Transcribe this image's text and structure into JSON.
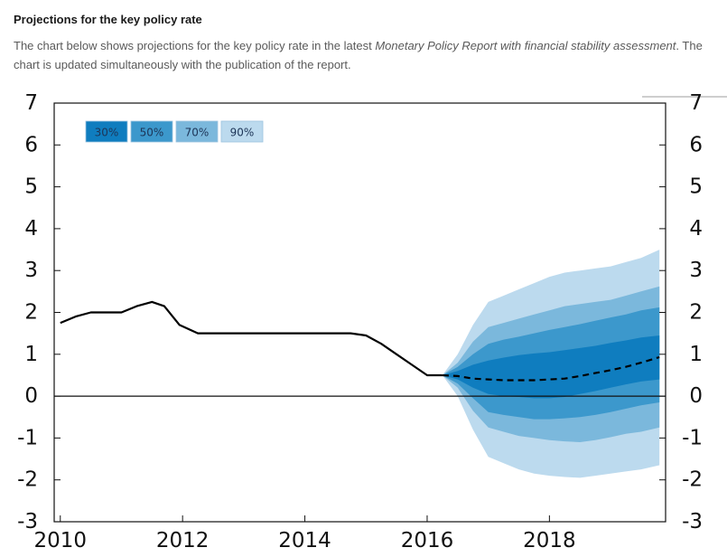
{
  "header": {
    "title": "Projections for the key policy rate",
    "desc_before": "The chart below shows projections for the key policy rate in the latest ",
    "desc_em": "Monetary Policy Report with financial stability assessment",
    "desc_after": ". The chart is updated simultaneously with the publication of the report."
  },
  "chart_data": {
    "type": "line",
    "ylim": [
      -3,
      7
    ],
    "y_ticks": [
      -3,
      -2,
      -1,
      0,
      1,
      2,
      3,
      4,
      5,
      6,
      7
    ],
    "y_tick_labels": [
      "-3",
      "-2",
      "-1",
      "0",
      "1",
      "2",
      "3",
      "4",
      "5",
      "6",
      "7"
    ],
    "xlim": [
      2009.9,
      2019.9
    ],
    "x_ticks": [
      2010,
      2012,
      2014,
      2016,
      2018
    ],
    "x_tick_labels": [
      "2010",
      "2012",
      "2014",
      "2016",
      "2018"
    ],
    "grid": false,
    "legend_placement": "top-left",
    "legend": [
      {
        "label": "30%",
        "color": "#0f7dbf"
      },
      {
        "label": "50%",
        "color": "#3c98cc"
      },
      {
        "label": "70%",
        "color": "#7bb8dc"
      },
      {
        "label": "90%",
        "color": "#bcdaee"
      }
    ],
    "historical": {
      "x": [
        2010.0,
        2010.25,
        2010.5,
        2010.75,
        2011.0,
        2011.25,
        2011.5,
        2011.7,
        2011.95,
        2012.25,
        2012.5,
        2012.75,
        2013.0,
        2013.25,
        2013.5,
        2013.75,
        2014.0,
        2014.25,
        2014.5,
        2014.75,
        2015.0,
        2015.25,
        2015.5,
        2015.75,
        2016.0,
        2016.25
      ],
      "y": [
        1.75,
        1.9,
        2.0,
        2.0,
        2.0,
        2.15,
        2.25,
        2.15,
        1.7,
        1.5,
        1.5,
        1.5,
        1.5,
        1.5,
        1.5,
        1.5,
        1.5,
        1.5,
        1.5,
        1.5,
        1.45,
        1.25,
        1.0,
        0.75,
        0.5,
        0.5
      ]
    },
    "projection": {
      "x": [
        2016.25,
        2016.5,
        2016.75,
        2017.0,
        2017.25,
        2017.5,
        2017.75,
        2018.0,
        2018.25,
        2018.5,
        2018.75,
        2019.0,
        2019.25,
        2019.5,
        2019.8
      ],
      "y": [
        0.5,
        0.48,
        0.42,
        0.4,
        0.38,
        0.38,
        0.38,
        0.4,
        0.42,
        0.48,
        0.55,
        0.62,
        0.7,
        0.8,
        0.93
      ]
    },
    "fan_x": [
      2016.25,
      2016.5,
      2016.75,
      2017.0,
      2017.25,
      2017.5,
      2017.75,
      2018.0,
      2018.25,
      2018.5,
      2018.75,
      2019.0,
      2019.25,
      2019.5,
      2019.8
    ],
    "bands": [
      {
        "name": "90%",
        "upper": [
          0.5,
          1.0,
          1.7,
          2.25,
          2.4,
          2.55,
          2.7,
          2.85,
          2.95,
          3.0,
          3.05,
          3.1,
          3.2,
          3.3,
          3.5
        ],
        "lower": [
          0.5,
          0.0,
          -0.8,
          -1.45,
          -1.6,
          -1.75,
          -1.85,
          -1.9,
          -1.93,
          -1.95,
          -1.9,
          -1.85,
          -1.8,
          -1.75,
          -1.65
        ]
      },
      {
        "name": "70%",
        "upper": [
          0.5,
          0.8,
          1.3,
          1.65,
          1.75,
          1.85,
          1.95,
          2.05,
          2.15,
          2.2,
          2.25,
          2.3,
          2.4,
          2.5,
          2.62
        ],
        "lower": [
          0.5,
          0.2,
          -0.35,
          -0.75,
          -0.85,
          -0.95,
          -1.0,
          -1.05,
          -1.08,
          -1.1,
          -1.05,
          -0.98,
          -0.9,
          -0.85,
          -0.75
        ]
      },
      {
        "name": "50%",
        "upper": [
          0.5,
          0.7,
          1.0,
          1.25,
          1.35,
          1.42,
          1.5,
          1.58,
          1.65,
          1.72,
          1.8,
          1.88,
          1.95,
          2.05,
          2.12
        ],
        "lower": [
          0.5,
          0.3,
          -0.05,
          -0.38,
          -0.45,
          -0.5,
          -0.55,
          -0.55,
          -0.53,
          -0.5,
          -0.45,
          -0.38,
          -0.3,
          -0.22,
          -0.15
        ]
      },
      {
        "name": "30%",
        "upper": [
          0.5,
          0.6,
          0.75,
          0.85,
          0.92,
          0.98,
          1.02,
          1.05,
          1.1,
          1.15,
          1.2,
          1.27,
          1.33,
          1.4,
          1.45
        ],
        "lower": [
          0.5,
          0.4,
          0.2,
          0.05,
          0.0,
          -0.02,
          -0.05,
          -0.05,
          -0.02,
          0.05,
          0.12,
          0.2,
          0.28,
          0.35,
          0.4
        ]
      }
    ]
  }
}
